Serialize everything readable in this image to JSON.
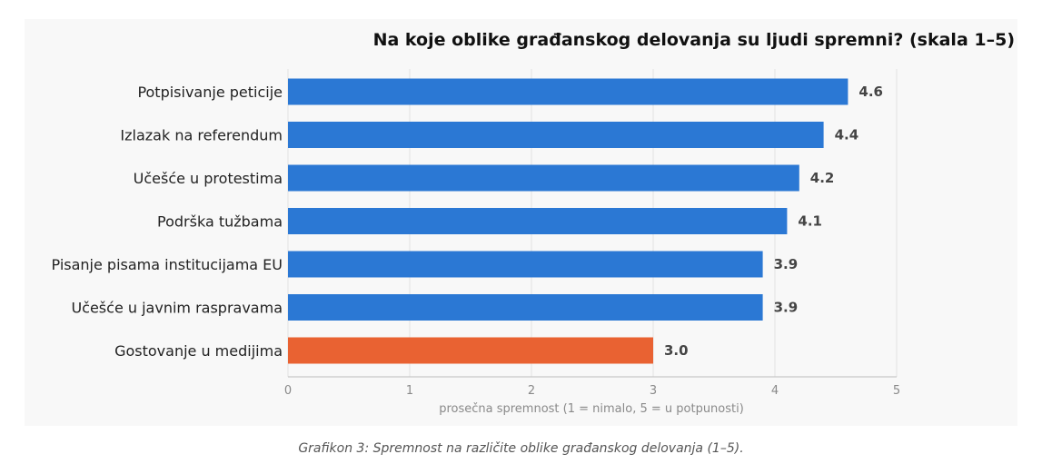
{
  "chart_data": {
    "type": "bar",
    "orientation": "horizontal",
    "title": "Na koje oblike građanskog delovanja su ljudi spremni? (skala 1–5)",
    "xlabel": "prosečna spremnost (1 = nimalo, 5 = u potpunosti)",
    "ylabel": "",
    "xlim": [
      0,
      5
    ],
    "xticks": [
      0,
      1,
      2,
      3,
      4,
      5
    ],
    "grid": "vertical",
    "categories": [
      "Potpisivanje peticije",
      "Izlazak na referendum",
      "Učešće u protestima",
      "Podrška tužbama",
      "Pisanje pisama institucijama EU",
      "Učešće u javnim raspravama",
      "Gostovanje u medijima"
    ],
    "values": [
      4.6,
      4.4,
      4.2,
      4.1,
      3.9,
      3.9,
      3.0
    ],
    "value_labels": [
      "4.6",
      "4.4",
      "4.2",
      "4.1",
      "3.9",
      "3.9",
      "3.0"
    ],
    "bar_colors": [
      "#2b78d4",
      "#2b78d4",
      "#2b78d4",
      "#2b78d4",
      "#2b78d4",
      "#2b78d4",
      "#e96232"
    ]
  },
  "caption": "Grafikon 3: Spremnost na različite oblike građanskog delovanja (1–5)."
}
